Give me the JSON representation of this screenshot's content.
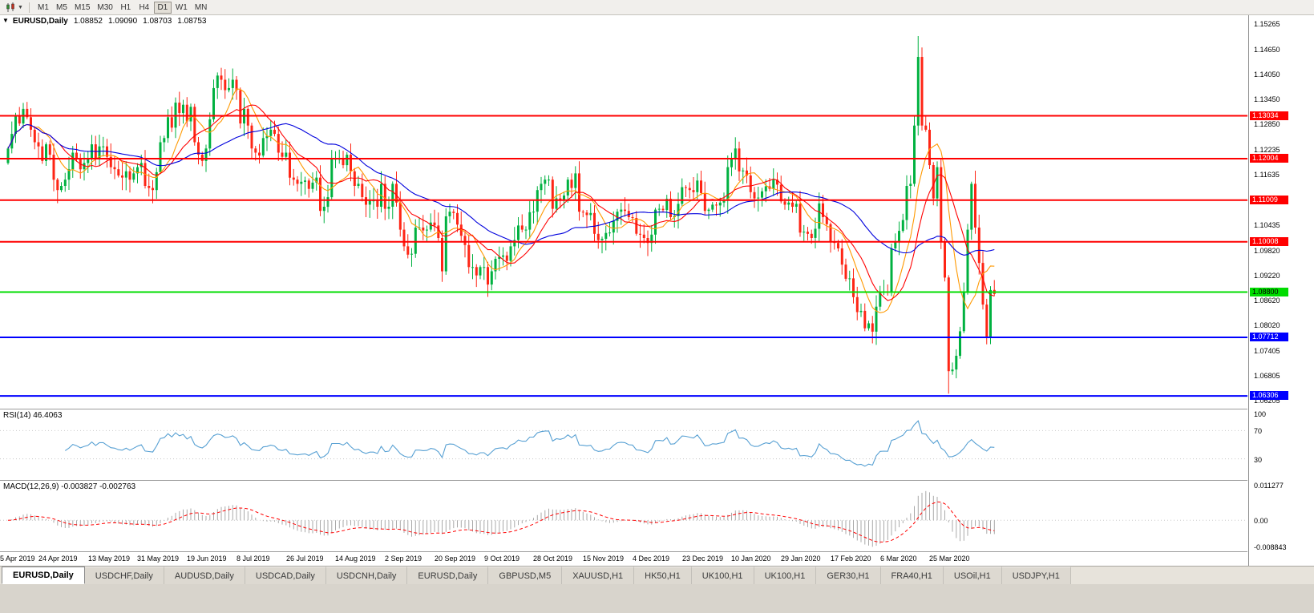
{
  "toolbar": {
    "chart_icon_name": "candlestick-chart-icon",
    "timeframes": [
      "M1",
      "M5",
      "M15",
      "M30",
      "H1",
      "H4",
      "D1",
      "W1",
      "MN"
    ],
    "active_timeframe": "D1"
  },
  "chart_header": {
    "symbol": "EURUSD,Daily",
    "open": "1.08852",
    "high": "1.09090",
    "low": "1.08703",
    "close": "1.08753"
  },
  "indicators": {
    "rsi": {
      "label": "RSI(14) 46.4063",
      "period": 14,
      "value": 46.4063,
      "axis_labels": [
        "100",
        "70",
        "30"
      ],
      "axis_values": [
        100,
        70,
        30
      ],
      "level_lines": [
        70,
        30
      ],
      "color": "#57a0d3"
    },
    "macd": {
      "label": "MACD(12,26,9) -0.003827 -0.002763",
      "fast": 12,
      "slow": 26,
      "signal": 9,
      "main_value": -0.003827,
      "signal_value": -0.002763,
      "axis_labels": [
        "0.011277",
        "0.00",
        "-0.008843"
      ],
      "axis_values": [
        0.011277,
        0,
        -0.008843
      ],
      "range": [
        -0.008843,
        0.011277
      ],
      "histogram_color": "#a9a9a9",
      "signal_color": "#ff0000"
    }
  },
  "chart_data": {
    "type": "candlestick",
    "symbol": "EURUSD",
    "period": "Daily",
    "ylim": [
      1.06,
      1.1545
    ],
    "first_open": 1.119,
    "up_color": "#00b140",
    "down_color": "#fe2515",
    "closes": [
      1.1225,
      1.126,
      1.1305,
      1.1285,
      1.132,
      1.13,
      1.127,
      1.124,
      1.123,
      1.1195,
      1.1235,
      1.121,
      1.115,
      1.1125,
      1.1135,
      1.115,
      1.1175,
      1.1215,
      1.12,
      1.1175,
      1.119,
      1.12,
      1.1235,
      1.12,
      1.123,
      1.123,
      1.1205,
      1.118,
      1.1175,
      1.116,
      1.1155,
      1.117,
      1.115,
      1.1165,
      1.118,
      1.119,
      1.1135,
      1.113,
      1.1125,
      1.1168,
      1.124,
      1.125,
      1.13,
      1.1275,
      1.1335,
      1.131,
      1.133,
      1.129,
      1.1325,
      1.124,
      1.121,
      1.1195,
      1.1225,
      1.1295,
      1.137,
      1.14,
      1.139,
      1.1365,
      1.137,
      1.139,
      1.1365,
      1.1285,
      1.132,
      1.128,
      1.1225,
      1.1215,
      1.1208,
      1.125,
      1.1255,
      1.127,
      1.126,
      1.1215,
      1.1205,
      1.1215,
      1.1155,
      1.115,
      1.114,
      1.1145,
      1.1148,
      1.1128,
      1.1143,
      1.1155,
      1.1075,
      1.1085,
      1.1108,
      1.12,
      1.12,
      1.12,
      1.1185,
      1.121,
      1.117,
      1.1135,
      1.114,
      1.1108,
      1.109,
      1.11,
      1.11,
      1.1085,
      1.114,
      1.108,
      1.1085,
      1.114,
      1.1095,
      1.103,
      1.099,
      1.097,
      1.0972,
      1.1035,
      1.1035,
      1.1028,
      1.103,
      1.1047,
      1.104,
      1.101,
      1.093,
      1.1062,
      1.1073,
      1.107,
      1.1042,
      1.1015,
      1.0993,
      1.094,
      1.094,
      1.092,
      1.094,
      1.094,
      1.0898,
      1.093,
      1.096,
      1.0965,
      1.0968,
      1.0955,
      1.099,
      1.1005,
      1.104,
      1.103,
      1.103,
      1.1072,
      1.1073,
      1.1125,
      1.114,
      1.115,
      1.115,
      1.108,
      1.1105,
      1.11,
      1.1112,
      1.115,
      1.113,
      1.1165,
      1.1073,
      1.1071,
      1.1065,
      1.107,
      1.102,
      1.1005,
      1.1008,
      1.1022,
      1.1023,
      1.1051,
      1.1073,
      1.1078,
      1.1075,
      1.106,
      1.1058,
      1.102,
      1.1018,
      1.101,
      1.0998,
      1.1018,
      1.1078,
      1.108,
      1.1077,
      1.1104,
      1.106,
      1.1063,
      1.1092,
      1.1132,
      1.113,
      1.1125,
      1.112,
      1.1148,
      1.1118,
      1.1075,
      1.1078,
      1.109,
      1.1088,
      1.1095,
      1.11,
      1.118,
      1.12,
      1.1225,
      1.117,
      1.1172,
      1.116,
      1.112,
      1.1105,
      1.1107,
      1.1122,
      1.1134,
      1.1128,
      1.115,
      1.1138,
      1.1098,
      1.109,
      1.1095,
      1.1085,
      1.1092,
      1.1023,
      1.1025,
      1.102,
      1.101,
      1.1032,
      1.1093,
      1.106,
      1.1043,
      1.1,
      1.0998,
      1.0985,
      1.0946,
      1.0912,
      1.0913,
      1.0868,
      1.0832,
      1.0835,
      1.0793,
      1.0805,
      1.0785,
      1.0845,
      1.088,
      1.0882,
      1.088,
      1.0985,
      1.1,
      1.1027,
      1.1053,
      1.1135,
      1.114,
      1.128,
      1.1445,
      1.128,
      1.127,
      1.1185,
      1.1105,
      1.118,
      1.1,
      1.0915,
      1.069,
      1.0694,
      1.0727,
      1.0786,
      1.088,
      1.103,
      1.114,
      1.1035,
      1.095,
      1.085,
      1.0773,
      1.0885,
      1.08753
    ],
    "extremes": {
      "max_high": 1.1495,
      "min_low": 1.0636
    },
    "last_candle": {
      "open": 1.08852,
      "high": 1.0909,
      "low": 1.08703,
      "close": 1.08753
    },
    "x_labels": [
      "5 Apr 2019",
      "24 Apr 2019",
      "13 May 2019",
      "31 May 2019",
      "19 Jun 2019",
      "8 Jul 2019",
      "26 Jul 2019",
      "14 Aug 2019",
      "2 Sep 2019",
      "20 Sep 2019",
      "9 Oct 2019",
      "28 Oct 2019",
      "15 Nov 2019",
      "4 Dec 2019",
      "23 Dec 2019",
      "10 Jan 2020",
      "29 Jan 2020",
      "17 Feb 2020",
      "6 Mar 2020",
      "25 Mar 2020"
    ],
    "x_label_step": 13,
    "moving_averages": [
      {
        "period": 8,
        "color": "#ff9900"
      },
      {
        "period": 13,
        "color": "#ff0000"
      },
      {
        "period": 34,
        "color": "#0000dd"
      }
    ],
    "horizontal_lines": [
      {
        "value": 1.13034,
        "label": "1.13034",
        "color": "#ff0000",
        "text_color": "#ffffff",
        "width": 2
      },
      {
        "value": 1.12004,
        "label": "1.12004",
        "color": "#ff0000",
        "text_color": "#ffffff",
        "width": 2
      },
      {
        "value": 1.11009,
        "label": "1.11009",
        "color": "#ff0000",
        "text_color": "#ffffff",
        "width": 2
      },
      {
        "value": 1.10008,
        "label": "1.10008",
        "color": "#ff0000",
        "text_color": "#ffffff",
        "width": 2
      },
      {
        "value": 1.088,
        "label": "1.08800",
        "color": "#00dc00",
        "text_color": "#000000",
        "width": 2
      },
      {
        "value": 1.07712,
        "label": "1.07712",
        "color": "#0000ff",
        "text_color": "#ffffff",
        "width": 2
      },
      {
        "value": 1.06306,
        "label": "1.06306",
        "color": "#0000ff",
        "text_color": "#ffffff",
        "width": 2
      }
    ],
    "price_ticks": [
      "1.15265",
      "1.14650",
      "1.14050",
      "1.13450",
      "1.12850",
      "1.12235",
      "1.11635",
      "1.10435",
      "1.09820",
      "1.09220",
      "1.08620",
      "1.08020",
      "1.07405",
      "1.06805",
      "1.06205"
    ]
  },
  "tabs": [
    {
      "label": "EURUSD,Daily",
      "active": true
    },
    {
      "label": "USDCHF,Daily"
    },
    {
      "label": "AUDUSD,Daily"
    },
    {
      "label": "USDCAD,Daily"
    },
    {
      "label": "USDCNH,Daily"
    },
    {
      "label": "EURUSD,Daily"
    },
    {
      "label": "GBPUSD,M5"
    },
    {
      "label": "XAUUSD,H1"
    },
    {
      "label": "HK50,H1"
    },
    {
      "label": "UK100,H1"
    },
    {
      "label": "UK100,H1"
    },
    {
      "label": "GER30,H1"
    },
    {
      "label": "FRA40,H1"
    },
    {
      "label": "USOil,H1"
    },
    {
      "label": "USDJPY,H1"
    }
  ]
}
